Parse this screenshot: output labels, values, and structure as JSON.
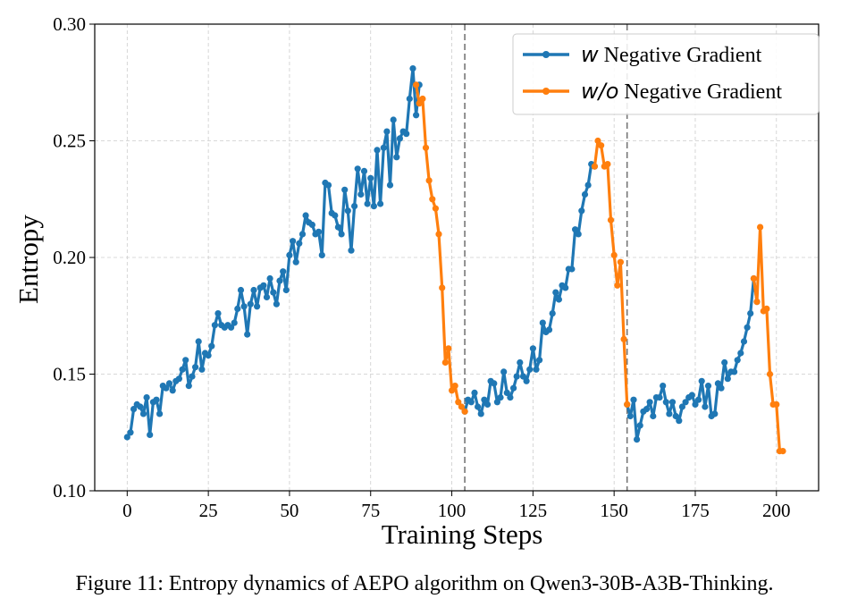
{
  "caption": "Figure 11: Entropy dynamics of AEPO algorithm on Qwen3-30B-A3B-Thinking.",
  "chart_data": {
    "type": "line",
    "title": "",
    "xlabel": "Training Steps",
    "ylabel": "Entropy",
    "xlim": [
      -10,
      213
    ],
    "ylim": [
      0.1,
      0.3
    ],
    "xticks": [
      0,
      25,
      50,
      75,
      100,
      125,
      150,
      175,
      200
    ],
    "yticks": [
      "0.10",
      "0.15",
      "0.20",
      "0.25",
      "0.30"
    ],
    "grid": true,
    "legend_position": "top-right",
    "vlines": [
      104,
      154
    ],
    "series": [
      {
        "name_prefix": "w",
        "name_suffix": " Negative Gradient",
        "color": "#1f77b4",
        "segments": [
          {
            "x": [
              0,
              1,
              2,
              3,
              4,
              5,
              6,
              7,
              8,
              9,
              10,
              11,
              12,
              13,
              14,
              15,
              16,
              17,
              18,
              19,
              20,
              21,
              22,
              23,
              24,
              25,
              26,
              27,
              28,
              29,
              30,
              31,
              32,
              33,
              34,
              35,
              36,
              37,
              38,
              39,
              40,
              41,
              42,
              43,
              44,
              45,
              46,
              47,
              48,
              49,
              50,
              51,
              52,
              53,
              54,
              55,
              56,
              57,
              58,
              59,
              60,
              61,
              62,
              63,
              64,
              65,
              66,
              67,
              68,
              69,
              70,
              71,
              72,
              73,
              74,
              75,
              76,
              77,
              78,
              79,
              80,
              81,
              82,
              83,
              84,
              85,
              86,
              87,
              88,
              89,
              90
            ],
            "y": [
              0.123,
              0.125,
              0.135,
              0.137,
              0.136,
              0.133,
              0.14,
              0.124,
              0.138,
              0.139,
              0.133,
              0.145,
              0.144,
              0.146,
              0.143,
              0.147,
              0.148,
              0.152,
              0.156,
              0.145,
              0.149,
              0.153,
              0.164,
              0.152,
              0.159,
              0.158,
              0.162,
              0.171,
              0.176,
              0.171,
              0.17,
              0.171,
              0.17,
              0.172,
              0.178,
              0.186,
              0.179,
              0.167,
              0.18,
              0.186,
              0.179,
              0.187,
              0.188,
              0.183,
              0.191,
              0.185,
              0.18,
              0.19,
              0.194,
              0.186,
              0.201,
              0.207,
              0.198,
              0.206,
              0.21,
              0.218,
              0.215,
              0.214,
              0.21,
              0.211,
              0.201,
              0.232,
              0.231,
              0.219,
              0.218,
              0.213,
              0.21,
              0.229,
              0.22,
              0.203,
              0.222,
              0.238,
              0.227,
              0.237,
              0.223,
              0.234,
              0.222,
              0.246,
              0.223,
              0.247,
              0.254,
              0.231,
              0.259,
              0.243,
              0.251,
              0.254,
              0.253,
              0.268,
              0.281,
              0.261,
              0.274
            ]
          },
          {
            "x": [
              104,
              105,
              106,
              107,
              108,
              109,
              110,
              111,
              112,
              113,
              114,
              115,
              116,
              117,
              118,
              119,
              120,
              121,
              122,
              123,
              124,
              125,
              126,
              127,
              128,
              129,
              130,
              131,
              132,
              133,
              134,
              135,
              136,
              137,
              138,
              139,
              140,
              141,
              142,
              143,
              144
            ],
            "y": [
              0.134,
              0.139,
              0.138,
              0.142,
              0.136,
              0.133,
              0.139,
              0.137,
              0.147,
              0.146,
              0.138,
              0.14,
              0.151,
              0.142,
              0.14,
              0.144,
              0.149,
              0.155,
              0.149,
              0.147,
              0.152,
              0.161,
              0.152,
              0.156,
              0.172,
              0.168,
              0.169,
              0.176,
              0.185,
              0.182,
              0.188,
              0.187,
              0.195,
              0.195,
              0.212,
              0.21,
              0.22,
              0.227,
              0.231,
              0.24,
              0.239
            ]
          },
          {
            "x": [
              154,
              155,
              156,
              157,
              158,
              159,
              160,
              161,
              162,
              163,
              164,
              165,
              166,
              167,
              168,
              169,
              170,
              171,
              172,
              173,
              174,
              175,
              176,
              177,
              178,
              179,
              180,
              181,
              182,
              183,
              184,
              185,
              186,
              187,
              188,
              189,
              190,
              191,
              192,
              193,
              194
            ],
            "y": [
              0.137,
              0.132,
              0.139,
              0.122,
              0.128,
              0.134,
              0.135,
              0.138,
              0.132,
              0.14,
              0.14,
              0.145,
              0.138,
              0.133,
              0.138,
              0.132,
              0.13,
              0.136,
              0.138,
              0.14,
              0.141,
              0.137,
              0.139,
              0.147,
              0.136,
              0.145,
              0.132,
              0.133,
              0.146,
              0.144,
              0.155,
              0.148,
              0.151,
              0.151,
              0.156,
              0.159,
              0.164,
              0.17,
              0.176,
              0.191,
              0.181
            ]
          }
        ]
      },
      {
        "name_prefix": "w/o",
        "name_suffix": " Negative Gradient",
        "color": "#ff7f0e",
        "segments": [
          {
            "x": [
              89,
              90,
              91,
              92,
              93,
              94,
              95,
              96,
              97,
              98,
              99,
              100,
              101,
              102,
              103,
              104
            ],
            "y": [
              0.274,
              0.266,
              0.268,
              0.247,
              0.233,
              0.225,
              0.221,
              0.21,
              0.187,
              0.155,
              0.161,
              0.143,
              0.145,
              0.138,
              0.136,
              0.134
            ]
          },
          {
            "x": [
              144,
              145,
              146,
              147,
              148,
              149,
              150,
              151,
              152,
              153,
              154
            ],
            "y": [
              0.239,
              0.25,
              0.248,
              0.239,
              0.24,
              0.216,
              0.201,
              0.188,
              0.198,
              0.165,
              0.137
            ]
          },
          {
            "x": [
              193,
              194,
              195,
              196,
              197,
              198,
              199,
              200,
              201,
              202
            ],
            "y": [
              0.191,
              0.181,
              0.213,
              0.177,
              0.178,
              0.15,
              0.137,
              0.137,
              0.117,
              0.117
            ]
          }
        ]
      }
    ]
  }
}
